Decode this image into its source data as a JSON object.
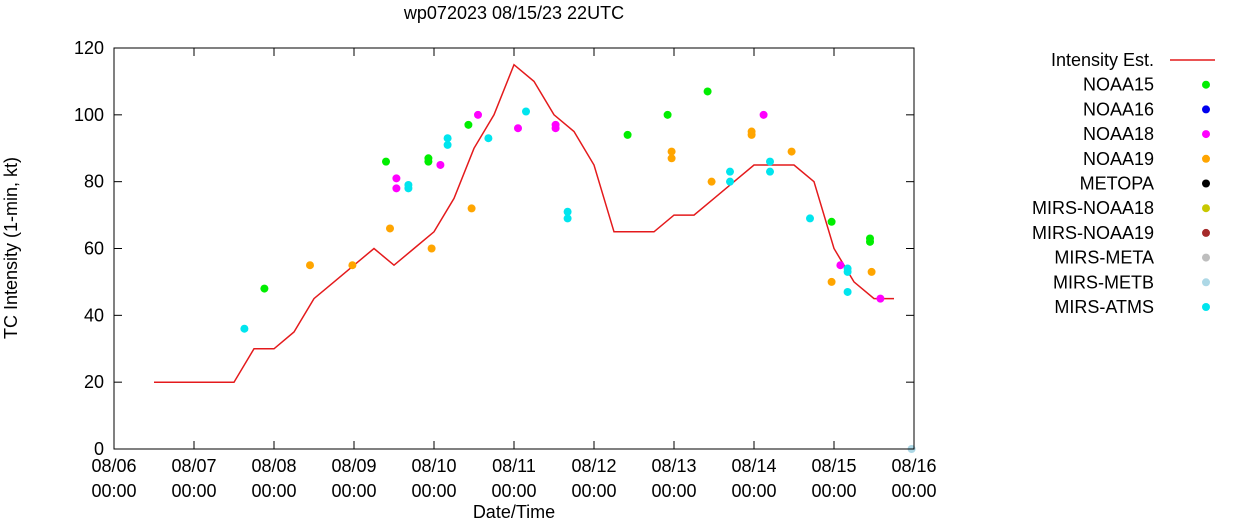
{
  "chart_data": {
    "type": "scatter",
    "title": "wp072023 08/15/23 22UTC",
    "xlabel": "Date/Time",
    "ylabel": "TC Intensity (1-min, kt)",
    "xlim": [
      0,
      10
    ],
    "ylim": [
      0,
      120
    ],
    "x_unit": "days since 08/06 00:00",
    "yticks": [
      0,
      20,
      40,
      60,
      80,
      100,
      120
    ],
    "xticks": [
      {
        "x": 0,
        "date": "08/06",
        "time": "00:00"
      },
      {
        "x": 1,
        "date": "08/07",
        "time": "00:00"
      },
      {
        "x": 2,
        "date": "08/08",
        "time": "00:00"
      },
      {
        "x": 3,
        "date": "08/09",
        "time": "00:00"
      },
      {
        "x": 4,
        "date": "08/10",
        "time": "00:00"
      },
      {
        "x": 5,
        "date": "08/11",
        "time": "00:00"
      },
      {
        "x": 6,
        "date": "08/12",
        "time": "00:00"
      },
      {
        "x": 7,
        "date": "08/13",
        "time": "00:00"
      },
      {
        "x": 8,
        "date": "08/14",
        "time": "00:00"
      },
      {
        "x": 9,
        "date": "08/15",
        "time": "00:00"
      },
      {
        "x": 10,
        "date": "08/16",
        "time": "00:00"
      }
    ],
    "series": [
      {
        "name": "Intensity Est.",
        "style": "line",
        "color": "#e41a1c",
        "points": [
          [
            0.5,
            20
          ],
          [
            1.5,
            20
          ],
          [
            1.75,
            30
          ],
          [
            2.0,
            30
          ],
          [
            2.25,
            35
          ],
          [
            2.5,
            45
          ],
          [
            2.75,
            50
          ],
          [
            3.0,
            55
          ],
          [
            3.25,
            60
          ],
          [
            3.5,
            55
          ],
          [
            3.75,
            60
          ],
          [
            4.0,
            65
          ],
          [
            4.25,
            75
          ],
          [
            4.5,
            90
          ],
          [
            4.75,
            100
          ],
          [
            5.0,
            115
          ],
          [
            5.25,
            110
          ],
          [
            5.5,
            100
          ],
          [
            5.75,
            95
          ],
          [
            6.0,
            85
          ],
          [
            6.25,
            65
          ],
          [
            6.75,
            65
          ],
          [
            7.0,
            70
          ],
          [
            7.25,
            70
          ],
          [
            7.5,
            75
          ],
          [
            7.75,
            80
          ],
          [
            8.0,
            85
          ],
          [
            8.5,
            85
          ],
          [
            8.75,
            80
          ],
          [
            9.0,
            60
          ],
          [
            9.25,
            50
          ],
          [
            9.5,
            45
          ],
          [
            9.75,
            45
          ]
        ]
      },
      {
        "name": "NOAA15",
        "style": "marker",
        "color": "#00ee00",
        "points": [
          [
            1.88,
            48
          ],
          [
            3.4,
            86
          ],
          [
            3.93,
            87
          ],
          [
            3.93,
            86
          ],
          [
            4.43,
            97
          ],
          [
            6.42,
            94
          ],
          [
            6.92,
            100
          ],
          [
            7.42,
            107
          ],
          [
            8.97,
            68
          ],
          [
            9.45,
            63
          ],
          [
            9.45,
            62
          ]
        ]
      },
      {
        "name": "NOAA16",
        "style": "marker",
        "color": "#0000ee",
        "points": []
      },
      {
        "name": "NOAA18",
        "style": "marker",
        "color": "#ff00ff",
        "points": [
          [
            3.53,
            81
          ],
          [
            3.53,
            78
          ],
          [
            4.08,
            85
          ],
          [
            4.55,
            100
          ],
          [
            5.05,
            96
          ],
          [
            5.52,
            97
          ],
          [
            5.52,
            96
          ],
          [
            8.12,
            100
          ],
          [
            9.08,
            55
          ],
          [
            9.58,
            45
          ]
        ]
      },
      {
        "name": "NOAA19",
        "style": "marker",
        "color": "#ffa500",
        "points": [
          [
            2.45,
            55
          ],
          [
            2.98,
            55
          ],
          [
            3.45,
            66
          ],
          [
            3.97,
            60
          ],
          [
            4.47,
            72
          ],
          [
            6.97,
            89
          ],
          [
            6.97,
            87
          ],
          [
            7.47,
            80
          ],
          [
            7.97,
            95
          ],
          [
            7.97,
            94
          ],
          [
            8.47,
            89
          ],
          [
            8.97,
            50
          ],
          [
            9.47,
            53
          ]
        ]
      },
      {
        "name": "METOPA",
        "style": "marker",
        "color": "#000000",
        "points": []
      },
      {
        "name": "MIRS-NOAA18",
        "style": "marker",
        "color": "#c8c800",
        "points": []
      },
      {
        "name": "MIRS-NOAA19",
        "style": "marker",
        "color": "#a52a2a",
        "points": []
      },
      {
        "name": "MIRS-META",
        "style": "marker",
        "color": "#bebebe",
        "points": []
      },
      {
        "name": "MIRS-METB",
        "style": "marker",
        "color": "#add8e6",
        "points": [
          [
            9.97,
            0
          ]
        ]
      },
      {
        "name": "MIRS-ATMS",
        "style": "marker",
        "color": "#00e5ee",
        "points": [
          [
            1.63,
            36
          ],
          [
            3.68,
            79
          ],
          [
            3.68,
            78
          ],
          [
            4.17,
            93
          ],
          [
            4.17,
            91
          ],
          [
            4.68,
            93
          ],
          [
            5.15,
            101
          ],
          [
            5.67,
            71
          ],
          [
            5.67,
            69
          ],
          [
            7.7,
            83
          ],
          [
            7.7,
            80
          ],
          [
            8.2,
            86
          ],
          [
            8.2,
            83
          ],
          [
            8.7,
            69
          ],
          [
            9.17,
            54
          ],
          [
            9.17,
            53
          ],
          [
            9.17,
            47
          ]
        ]
      }
    ],
    "legend_position": "right"
  }
}
